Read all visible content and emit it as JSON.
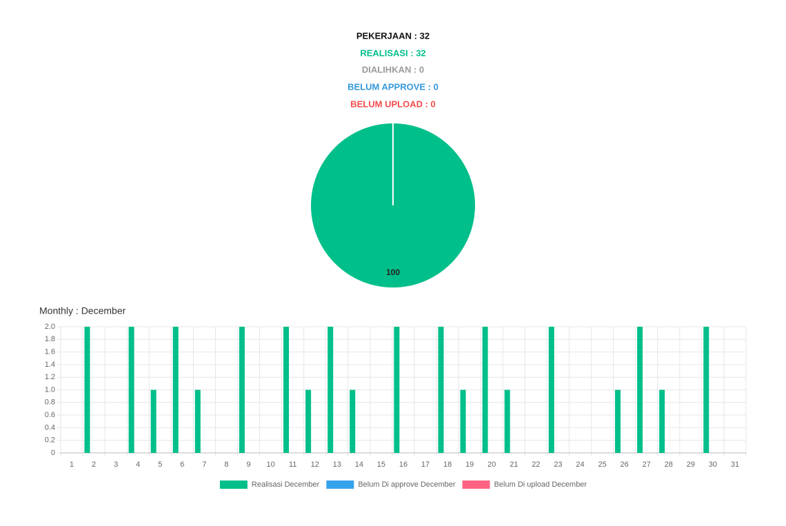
{
  "summary": [
    "PEKERJAAN : 32",
    "REALISASI : 32",
    "DIALIHKAN : 0",
    "BELUM APPROVE : 0",
    "BELUM UPLOAD : 0"
  ],
  "chart_data": [
    {
      "type": "pie",
      "values": [
        100
      ],
      "colors": [
        "#00bf8a"
      ]
    },
    {
      "type": "bar",
      "title": "Monthly : December",
      "categories": [
        "1",
        "2",
        "3",
        "4",
        "5",
        "6",
        "7",
        "8",
        "9",
        "10",
        "11",
        "12",
        "13",
        "14",
        "15",
        "16",
        "17",
        "18",
        "19",
        "20",
        "21",
        "22",
        "23",
        "24",
        "25",
        "26",
        "27",
        "28",
        "29",
        "30",
        "31"
      ],
      "series": [
        {
          "name": "Realisasi December",
          "color": "#00bf8a",
          "values": [
            0,
            2,
            0,
            2,
            1,
            2,
            1,
            0,
            2,
            0,
            2,
            1,
            2,
            1,
            0,
            2,
            0,
            2,
            1,
            2,
            1,
            0,
            2,
            0,
            0,
            1,
            2,
            1,
            0,
            2,
            0
          ]
        },
        {
          "name": "Belum Di approve December",
          "color": "#36a2eb",
          "values": [
            0,
            0,
            0,
            0,
            0,
            0,
            0,
            0,
            0,
            0,
            0,
            0,
            0,
            0,
            0,
            0,
            0,
            0,
            0,
            0,
            0,
            0,
            0,
            0,
            0,
            0,
            0,
            0,
            0,
            0,
            0
          ]
        },
        {
          "name": "Belum Di upload December",
          "color": "#ff6384",
          "values": [
            0,
            0,
            0,
            0,
            0,
            0,
            0,
            0,
            0,
            0,
            0,
            0,
            0,
            0,
            0,
            0,
            0,
            0,
            0,
            0,
            0,
            0,
            0,
            0,
            0,
            0,
            0,
            0,
            0,
            0,
            0
          ]
        }
      ],
      "ylim": [
        0,
        2
      ],
      "yticks": [
        0,
        0.2,
        0.4,
        0.6,
        0.8,
        {
          "value": 1,
          "label": "1.0"
        },
        1.2,
        1.4,
        1.6,
        1.8,
        {
          "value": 2,
          "label": "2.0"
        }
      ],
      "grid": true
    }
  ]
}
